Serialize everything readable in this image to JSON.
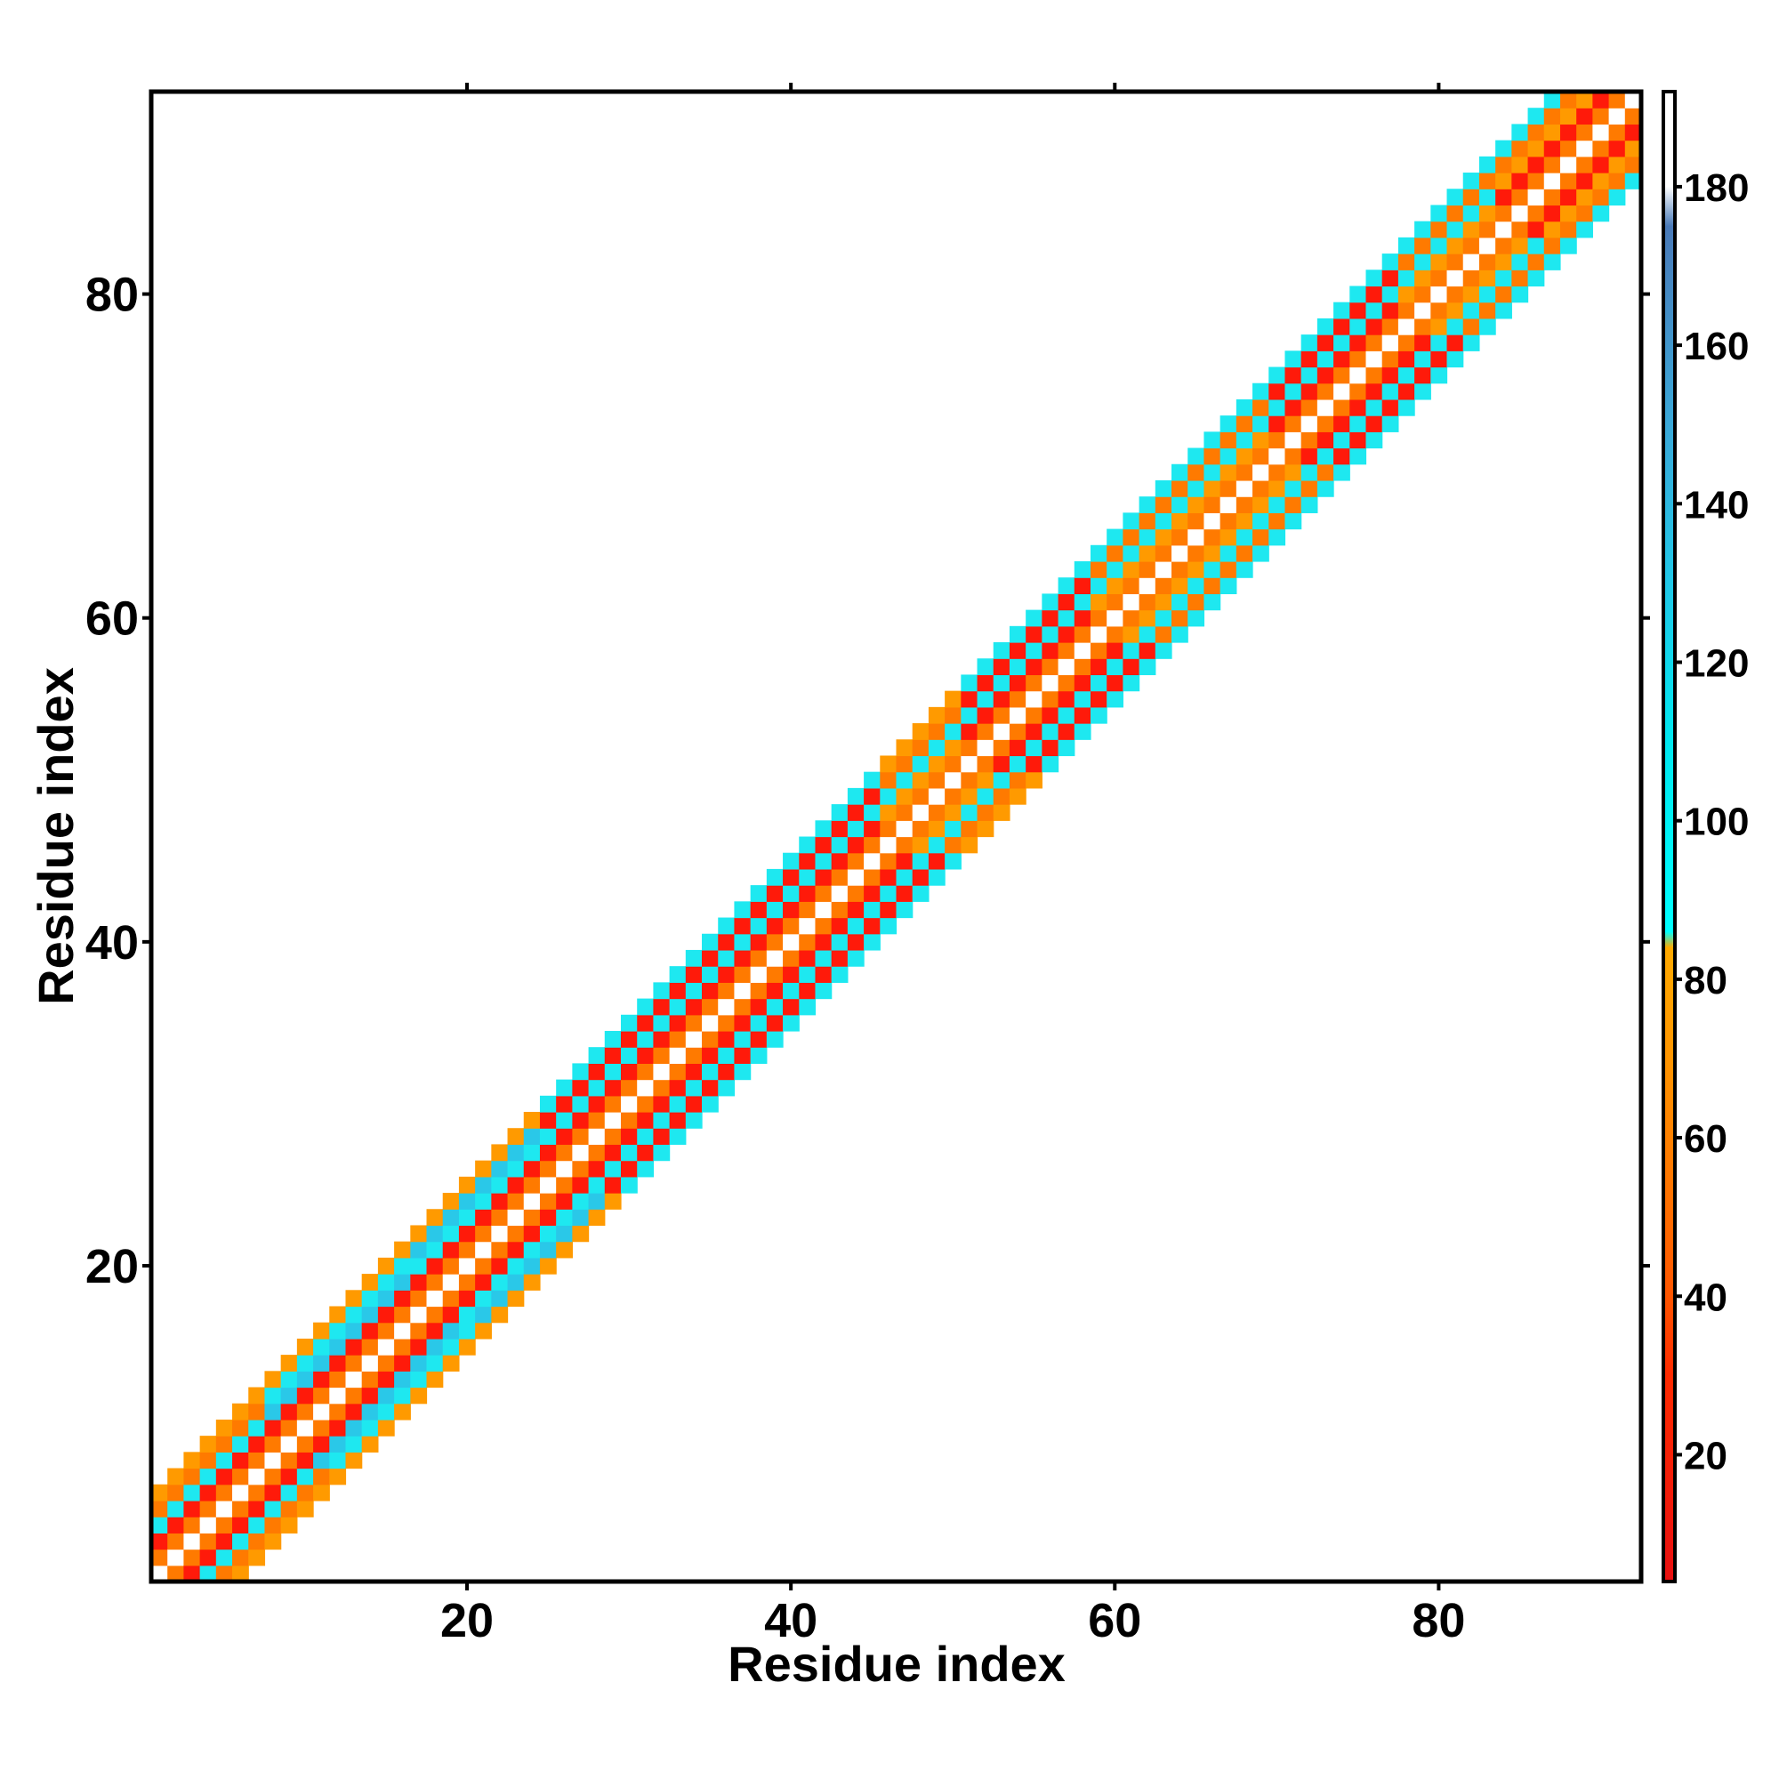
{
  "chart_data": {
    "type": "heatmap",
    "title": "",
    "xlabel": "Residue index",
    "ylabel": "Residue index",
    "xlim": [
      1,
      92
    ],
    "ylim": [
      1,
      92
    ],
    "x_ticks": [
      20,
      40,
      60,
      80
    ],
    "y_ticks": [
      20,
      40,
      60,
      80
    ],
    "grid": false,
    "n_residues": 92,
    "band_half_width": 5,
    "colorbar": {
      "position": "right",
      "range": [
        4,
        192
      ],
      "ticks": [
        20,
        40,
        60,
        80,
        100,
        120,
        140,
        160,
        180
      ],
      "stops": [
        {
          "value": 4,
          "color": "#e81010"
        },
        {
          "value": 30,
          "color": "#ff2a00"
        },
        {
          "value": 40,
          "color": "#ff5500"
        },
        {
          "value": 55,
          "color": "#ff7700"
        },
        {
          "value": 70,
          "color": "#ff9500"
        },
        {
          "value": 84,
          "color": "#ffaa00"
        },
        {
          "value": 86,
          "color": "#00ffff"
        },
        {
          "value": 110,
          "color": "#00e8f0"
        },
        {
          "value": 130,
          "color": "#20c8e8"
        },
        {
          "value": 150,
          "color": "#3aa8d8"
        },
        {
          "value": 175,
          "color": "#4a7ab8"
        },
        {
          "value": 180,
          "color": "#ffffff"
        },
        {
          "value": 192,
          "color": "#ffffff"
        }
      ]
    },
    "cell_palette": {
      "same_residue": "#ffffff",
      "one_apart": "#ff7a00",
      "two_apart_low": "#ff1a0a",
      "two_apart_high": "#ff9a00",
      "contact": "#1ee8f0",
      "contact_alt": "#2ac8e8"
    },
    "segments": [
      {
        "start": 1,
        "end": 7,
        "offset_pattern": [
          "one_apart",
          "two_apart_low",
          "contact",
          "one_apart",
          "two_apart_high"
        ]
      },
      {
        "start": 8,
        "end": 16,
        "offset_pattern": [
          "one_apart",
          "two_apart_low",
          "contact_alt",
          "contact",
          "two_apart_high"
        ]
      },
      {
        "start": 17,
        "end": 24,
        "offset_pattern": [
          "one_apart",
          "two_apart_low",
          "contact",
          "contact_alt",
          "two_apart_high"
        ]
      },
      {
        "start": 25,
        "end": 34,
        "offset_pattern": [
          "one_apart",
          "two_apart_low",
          "contact",
          "two_apart_low",
          "contact"
        ]
      },
      {
        "start": 35,
        "end": 45,
        "offset_pattern": [
          "one_apart",
          "two_apart_low",
          "contact",
          "two_apart_low",
          "contact"
        ]
      },
      {
        "start": 46,
        "end": 50,
        "offset_pattern": [
          "one_apart",
          "two_apart_high",
          "contact",
          "one_apart",
          "two_apart_high"
        ]
      },
      {
        "start": 51,
        "end": 58,
        "offset_pattern": [
          "one_apart",
          "two_apart_low",
          "contact",
          "two_apart_low",
          "contact"
        ]
      },
      {
        "start": 59,
        "end": 69,
        "offset_pattern": [
          "one_apart",
          "two_apart_high",
          "contact",
          "one_apart",
          "contact"
        ]
      },
      {
        "start": 70,
        "end": 77,
        "offset_pattern": [
          "one_apart",
          "two_apart_low",
          "contact",
          "two_apart_low",
          "contact"
        ]
      },
      {
        "start": 78,
        "end": 83,
        "offset_pattern": [
          "one_apart",
          "two_apart_high",
          "contact",
          "one_apart",
          "contact"
        ]
      },
      {
        "start": 84,
        "end": 92,
        "offset_pattern": [
          "one_apart",
          "two_apart_low",
          "two_apart_high",
          "one_apart",
          "contact"
        ]
      }
    ]
  }
}
